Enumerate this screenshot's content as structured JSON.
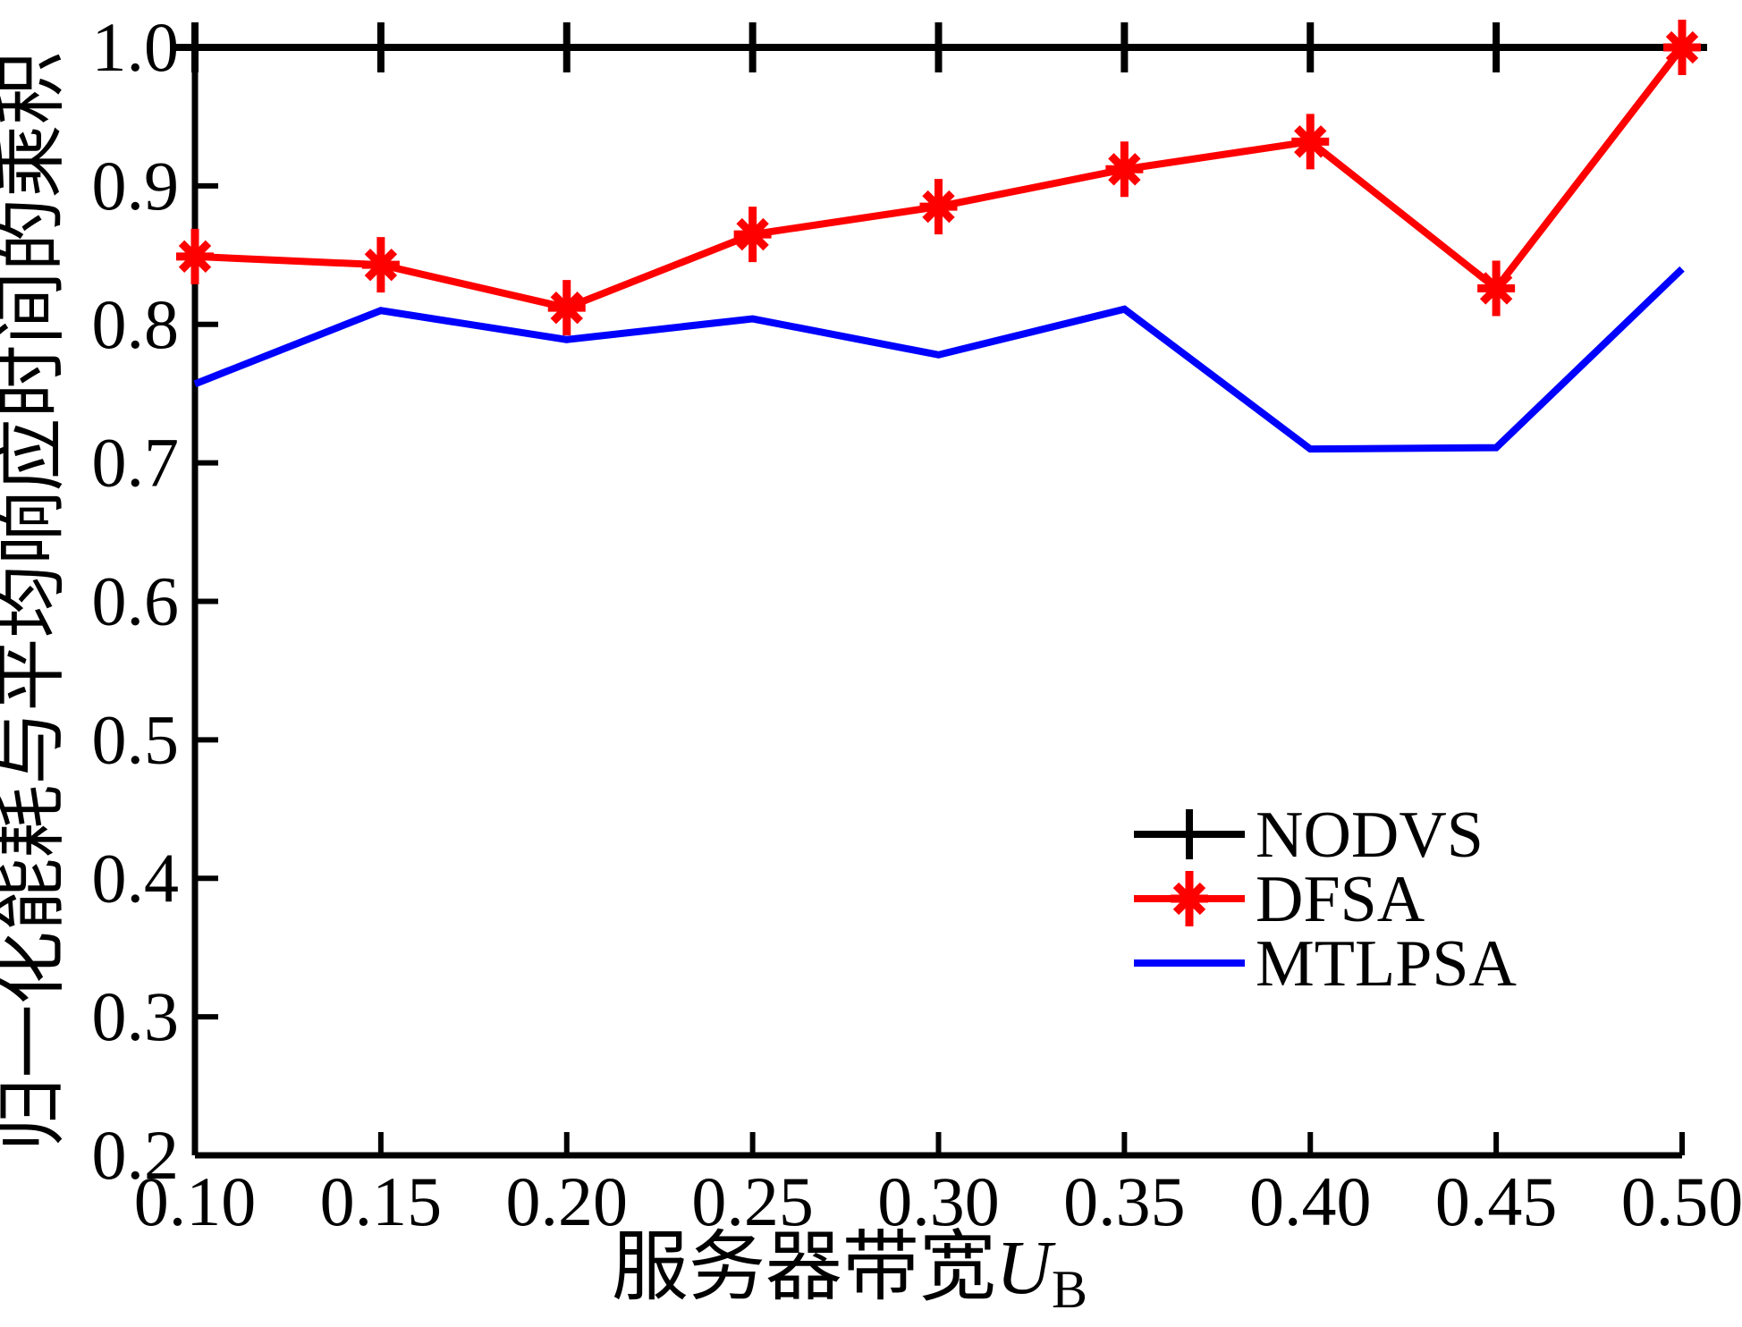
{
  "chart_data": {
    "type": "line",
    "title": "",
    "xlabel_cn": "服务器带宽",
    "xlabel_var": "U",
    "xlabel_sub": "B",
    "ylabel": "归一化能耗与平均响应时间的乘积",
    "xlim": [
      0.1,
      0.5
    ],
    "ylim": [
      0.2,
      1.0
    ],
    "grid": false,
    "box": false,
    "legend_position": "inside-lower-right",
    "xticks": [
      0.1,
      0.15,
      0.2,
      0.25,
      0.3,
      0.35,
      0.4,
      0.45,
      0.5
    ],
    "xtick_labels": [
      "0.10",
      "0.15",
      "0.20",
      "0.25",
      "0.30",
      "0.35",
      "0.40",
      "0.45",
      "0.50"
    ],
    "yticks": [
      0.2,
      0.3,
      0.4,
      0.5,
      0.6,
      0.7,
      0.8,
      0.9,
      1.0
    ],
    "ytick_labels": [
      "0.2",
      "0.3",
      "0.4",
      "0.5",
      "0.6",
      "0.7",
      "0.8",
      "0.9",
      "1.0"
    ],
    "x": [
      0.1,
      0.15,
      0.2,
      0.25,
      0.3,
      0.35,
      0.4,
      0.45,
      0.5
    ],
    "series": [
      {
        "name": "NODVS",
        "color": "#000000",
        "marker": "plus",
        "values": [
          1.0,
          1.0,
          1.0,
          1.0,
          1.0,
          1.0,
          1.0,
          1.0,
          1.0
        ]
      },
      {
        "name": "DFSA",
        "color": "#ff0000",
        "marker": "asterisk",
        "values": [
          0.849,
          0.843,
          0.812,
          0.865,
          0.885,
          0.912,
          0.932,
          0.826,
          1.0
        ]
      },
      {
        "name": "MTLPSA",
        "color": "#0000ff",
        "marker": "none",
        "values": [
          0.757,
          0.81,
          0.789,
          0.804,
          0.778,
          0.811,
          0.71,
          0.711,
          0.84
        ]
      }
    ],
    "colors": {
      "axis": "#000000",
      "background": "#ffffff"
    }
  }
}
